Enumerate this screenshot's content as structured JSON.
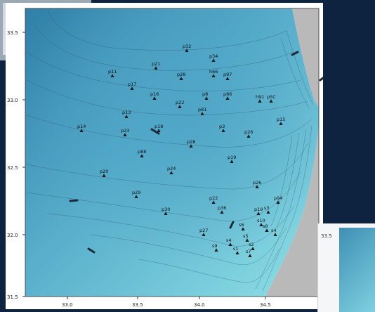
{
  "map": {
    "x_ticks": [
      "33.0",
      "33.5",
      "34.0",
      "34.5"
    ],
    "y_ticks": [
      "33.5",
      "33.0",
      "32.5",
      "32.0",
      "31.5"
    ],
    "inset_y_tick": "33.5",
    "stations": [
      {
        "label": "p32"
      },
      {
        "label": "p34"
      },
      {
        "label": "p11"
      },
      {
        "label": "p21"
      },
      {
        "label": "p28"
      },
      {
        "label": "h66"
      },
      {
        "label": "p97"
      },
      {
        "label": "p17"
      },
      {
        "label": "p16"
      },
      {
        "label": "p8"
      },
      {
        "label": "p86"
      },
      {
        "label": "h91"
      },
      {
        "label": "p5C"
      },
      {
        "label": "p13"
      },
      {
        "label": "p22"
      },
      {
        "label": "p81"
      },
      {
        "label": "p14"
      },
      {
        "label": "p23"
      },
      {
        "label": "p18"
      },
      {
        "label": "p3"
      },
      {
        "label": "p28"
      },
      {
        "label": "p26"
      },
      {
        "label": "p15"
      },
      {
        "label": "p88"
      },
      {
        "label": "p20"
      },
      {
        "label": "p24"
      },
      {
        "label": "p19"
      },
      {
        "label": "p29"
      },
      {
        "label": "p26"
      },
      {
        "label": "p30"
      },
      {
        "label": "p94"
      },
      {
        "label": "p22"
      },
      {
        "label": "p19"
      },
      {
        "label": "p36"
      },
      {
        "label": "p27"
      },
      {
        "label": "s9"
      },
      {
        "label": "s4"
      },
      {
        "label": "s1"
      },
      {
        "label": "s5"
      },
      {
        "label": "s2"
      },
      {
        "label": "s10"
      },
      {
        "label": "s8"
      },
      {
        "label": "s3"
      },
      {
        "label": "s6"
      },
      {
        "label": "s7"
      },
      {
        "label": "s4"
      }
    ]
  }
}
